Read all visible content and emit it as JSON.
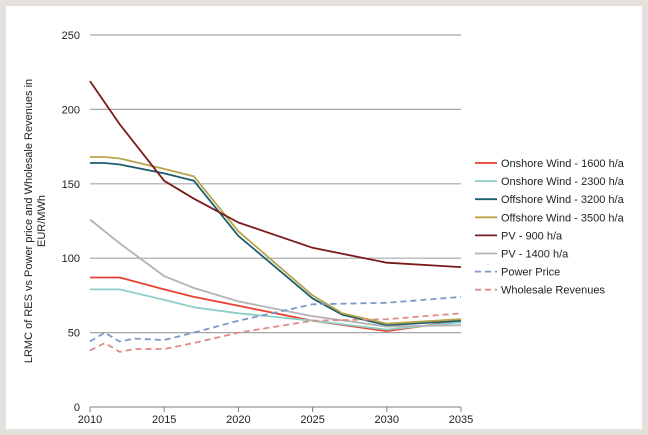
{
  "chart_data": {
    "type": "line",
    "title": "",
    "xlabel": "",
    "ylabel_lines": [
      "LRMC of RES vs Power price and Wholesale Revenues in",
      "EUR/MWh"
    ],
    "xlim": [
      2010,
      2035
    ],
    "ylim": [
      0,
      250
    ],
    "x_ticks": [
      2010,
      2015,
      2020,
      2025,
      2030,
      2035
    ],
    "y_ticks": [
      0,
      50,
      100,
      150,
      200,
      250
    ],
    "grid": true,
    "legend_position": "right",
    "series": [
      {
        "name": "Onshore Wind  - 1600 h/a",
        "color": "#e8412f",
        "dashed": false,
        "points": [
          [
            2010,
            87
          ],
          [
            2012,
            87
          ],
          [
            2015,
            79
          ],
          [
            2017,
            74
          ],
          [
            2020,
            68
          ],
          [
            2025,
            58
          ],
          [
            2030,
            51
          ],
          [
            2035,
            58
          ]
        ]
      },
      {
        "name": "Onshore Wind  - 2300 h/a",
        "color": "#8ecdc6",
        "dashed": false,
        "points": [
          [
            2010,
            79
          ],
          [
            2012,
            79
          ],
          [
            2015,
            72
          ],
          [
            2017,
            67
          ],
          [
            2020,
            63
          ],
          [
            2025,
            58
          ],
          [
            2030,
            52
          ],
          [
            2035,
            57
          ]
        ]
      },
      {
        "name": "Offshore Wind  - 3200 h/a",
        "color": "#1b5e6e",
        "dashed": false,
        "points": [
          [
            2010,
            164
          ],
          [
            2011,
            164
          ],
          [
            2012,
            163
          ],
          [
            2015,
            157
          ],
          [
            2017,
            152
          ],
          [
            2020,
            115
          ],
          [
            2025,
            73
          ],
          [
            2027,
            62
          ],
          [
            2030,
            55
          ],
          [
            2035,
            58
          ]
        ]
      },
      {
        "name": "Offshore Wind  - 3500 h/a",
        "color": "#b8a44a",
        "dashed": false,
        "points": [
          [
            2010,
            168
          ],
          [
            2011,
            168
          ],
          [
            2012,
            167
          ],
          [
            2015,
            160
          ],
          [
            2017,
            155
          ],
          [
            2020,
            118
          ],
          [
            2025,
            75
          ],
          [
            2027,
            63
          ],
          [
            2030,
            56
          ],
          [
            2035,
            59
          ]
        ]
      },
      {
        "name": "PV - 900 h/a",
        "color": "#7a1a1a",
        "dashed": false,
        "points": [
          [
            2010,
            219
          ],
          [
            2012,
            190
          ],
          [
            2015,
            152
          ],
          [
            2017,
            140
          ],
          [
            2020,
            124
          ],
          [
            2025,
            107
          ],
          [
            2030,
            97
          ],
          [
            2035,
            94
          ]
        ]
      },
      {
        "name": "PV - 1400 h/a",
        "color": "#b3b3b3",
        "dashed": false,
        "points": [
          [
            2010,
            126
          ],
          [
            2012,
            110
          ],
          [
            2015,
            88
          ],
          [
            2017,
            80
          ],
          [
            2020,
            71
          ],
          [
            2025,
            61
          ],
          [
            2030,
            54
          ],
          [
            2035,
            55
          ]
        ]
      },
      {
        "name": "Power Price",
        "color": "#7f96c8",
        "dashed": true,
        "points": [
          [
            2010,
            44
          ],
          [
            2011,
            50
          ],
          [
            2012,
            44
          ],
          [
            2013,
            46
          ],
          [
            2015,
            45
          ],
          [
            2017,
            50
          ],
          [
            2020,
            58
          ],
          [
            2025,
            69
          ],
          [
            2030,
            70
          ],
          [
            2035,
            74
          ]
        ]
      },
      {
        "name": "Wholesale Revenues",
        "color": "#e08a8a",
        "dashed": true,
        "points": [
          [
            2010,
            38
          ],
          [
            2011,
            43
          ],
          [
            2012,
            37
          ],
          [
            2013,
            39
          ],
          [
            2015,
            39
          ],
          [
            2017,
            43
          ],
          [
            2020,
            50
          ],
          [
            2025,
            58
          ],
          [
            2030,
            59
          ],
          [
            2035,
            63
          ]
        ]
      }
    ]
  }
}
